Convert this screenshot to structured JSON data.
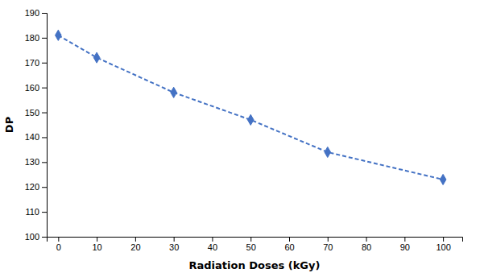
{
  "chart_data": {
    "type": "line",
    "x": [
      0,
      10,
      30,
      50,
      70,
      100
    ],
    "values": [
      181,
      172,
      158,
      147,
      134,
      123
    ],
    "color": "#4472C4",
    "marker": "diamond",
    "line_style": "dashed",
    "xlabel": "Radiation Doses (kGy)",
    "ylabel": "DP",
    "xlim": [
      -3,
      105
    ],
    "ylim": [
      100,
      190
    ],
    "xticks": [
      0,
      10,
      20,
      30,
      40,
      50,
      60,
      70,
      80,
      90,
      100
    ],
    "yticks": [
      100,
      110,
      120,
      130,
      140,
      150,
      160,
      170,
      180,
      190
    ],
    "grid": false
  }
}
